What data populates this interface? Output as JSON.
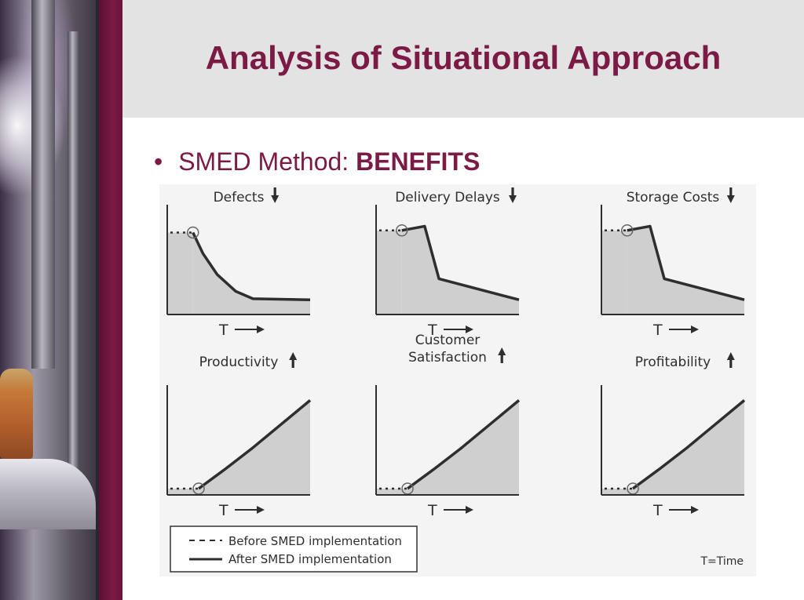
{
  "title": "Analysis of Situational Approach",
  "bullet": {
    "prefix": "SMED Method:",
    "emphasis": "BENEFITS"
  },
  "panels": [
    {
      "label": [
        "Defects"
      ],
      "direction": "down",
      "axis": "T"
    },
    {
      "label": [
        "Delivery Delays"
      ],
      "direction": "down",
      "axis": "T"
    },
    {
      "label": [
        "Storage Costs"
      ],
      "direction": "down",
      "axis": "T"
    },
    {
      "label": [
        "Productivity"
      ],
      "direction": "up",
      "axis": "T"
    },
    {
      "label": [
        "Customer",
        "Satisfaction"
      ],
      "direction": "up",
      "axis": "T"
    },
    {
      "label": [
        "Profitability"
      ],
      "direction": "up",
      "axis": "T"
    }
  ],
  "legend": {
    "before": "Before SMED implementation",
    "after": "After SMED implementation",
    "time_note": "T=Time"
  },
  "colors": {
    "accent": "#7a1a45",
    "curve": "#2e2e2e",
    "fill": "#cfcfcf"
  }
}
